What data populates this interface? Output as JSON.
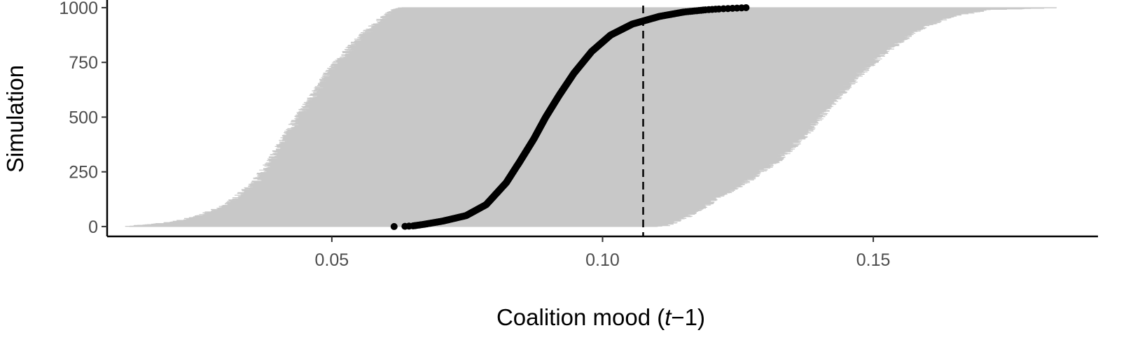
{
  "chart_data": {
    "type": "scatter",
    "title": "",
    "xlabel": {
      "prefix": "Coalition mood (",
      "italic": "t",
      "suffix": "−1)"
    },
    "ylabel": "Simulation",
    "xlim": [
      0.0085,
      0.1915
    ],
    "ylim": [
      -45,
      1035
    ],
    "x_ticks": [
      0.05,
      0.1,
      0.15
    ],
    "x_tick_labels": [
      "0.05",
      "0.10",
      "0.15"
    ],
    "y_ticks": [
      0,
      250,
      500,
      750,
      1000
    ],
    "y_tick_labels": [
      "0",
      "250",
      "500",
      "750",
      "1000"
    ],
    "grid": false,
    "reference_line": {
      "x": 0.1075,
      "style": "dashed"
    },
    "n_simulations": 1000,
    "point_estimate_quantiles": [
      [
        0,
        0.0615
      ],
      [
        1,
        0.0635
      ],
      [
        3,
        0.065
      ],
      [
        10,
        0.067
      ],
      [
        25,
        0.0705
      ],
      [
        50,
        0.0748
      ],
      [
        100,
        0.0785
      ],
      [
        200,
        0.0822
      ],
      [
        300,
        0.0848
      ],
      [
        400,
        0.0873
      ],
      [
        500,
        0.0895
      ],
      [
        600,
        0.092
      ],
      [
        700,
        0.0947
      ],
      [
        800,
        0.098
      ],
      [
        875,
        0.1015
      ],
      [
        925,
        0.1055
      ],
      [
        960,
        0.1105
      ],
      [
        980,
        0.115
      ],
      [
        990,
        0.119
      ],
      [
        994,
        0.1215
      ],
      [
        997,
        0.124
      ],
      [
        1000,
        0.1265
      ]
    ],
    "interval_lower_quantiles": [
      [
        0,
        0.013
      ],
      [
        20,
        0.022
      ],
      [
        50,
        0.027
      ],
      [
        100,
        0.032
      ],
      [
        200,
        0.037
      ],
      [
        300,
        0.04
      ],
      [
        400,
        0.0425
      ],
      [
        500,
        0.045
      ],
      [
        600,
        0.048
      ],
      [
        700,
        0.0505
      ],
      [
        800,
        0.054
      ],
      [
        900,
        0.058
      ],
      [
        960,
        0.061
      ],
      [
        1000,
        0.0635
      ]
    ],
    "interval_upper_quantiles": [
      [
        0,
        0.11
      ],
      [
        40,
        0.114
      ],
      [
        100,
        0.118
      ],
      [
        200,
        0.125
      ],
      [
        300,
        0.131
      ],
      [
        400,
        0.1355
      ],
      [
        500,
        0.139
      ],
      [
        600,
        0.1425
      ],
      [
        700,
        0.1465
      ],
      [
        800,
        0.151
      ],
      [
        900,
        0.157
      ],
      [
        960,
        0.163
      ],
      [
        990,
        0.17
      ],
      [
        1000,
        0.1835
      ]
    ],
    "colors": {
      "interval": "#c8c8c8",
      "point": "#000000",
      "reference_line": "#000000",
      "axis": "#000000",
      "tick_label": "#4d4d4d"
    }
  }
}
